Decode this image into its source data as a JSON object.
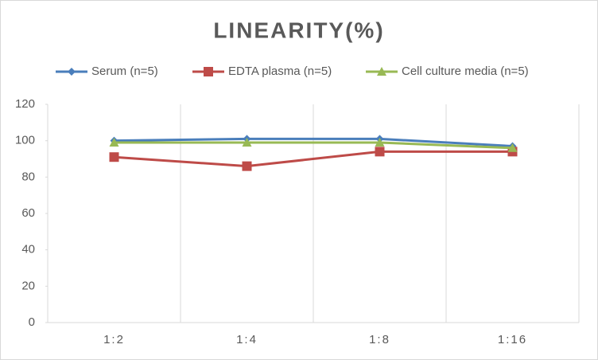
{
  "chart_data": {
    "type": "line",
    "title": "LINEARITY(%)",
    "categories": [
      "1:2",
      "1:4",
      "1:8",
      "1:16"
    ],
    "series": [
      {
        "name": "Serum (n=5)",
        "color": "#4a7ebb",
        "marker": "diamond",
        "values": [
          100,
          101,
          101,
          97
        ]
      },
      {
        "name": "EDTA plasma (n=5)",
        "color": "#be4b48",
        "marker": "square",
        "values": [
          91,
          86,
          94,
          94
        ]
      },
      {
        "name": "Cell culture media (n=5)",
        "color": "#98b954",
        "marker": "triangle",
        "values": [
          99,
          99,
          99,
          96
        ]
      }
    ],
    "ylim": [
      0,
      120
    ],
    "yticks": [
      0,
      20,
      40,
      60,
      80,
      100,
      120
    ],
    "legend": "top"
  }
}
